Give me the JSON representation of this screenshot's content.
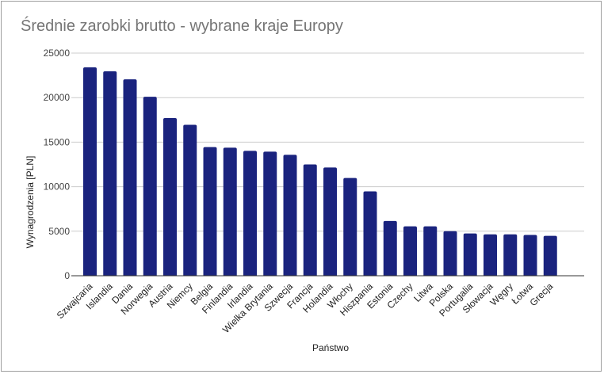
{
  "chart_data": {
    "type": "bar",
    "title": "Średnie zarobki brutto - wybrane kraje Europy",
    "xlabel": "Państwo",
    "ylabel": "Wynagrodzenia [PLN]",
    "ylim": [
      0,
      25000
    ],
    "yticks": [
      0,
      5000,
      10000,
      15000,
      20000,
      25000
    ],
    "grid": true,
    "legend": "none",
    "bar_color": "#1a237e",
    "categories": [
      "Szwajcaria",
      "Islandia",
      "Dania",
      "Norwegia",
      "Austria",
      "Niemcy",
      "Belgia",
      "Finlandia",
      "Irlandia",
      "Wielka Brytania",
      "Szwecja",
      "Francja",
      "Holandia",
      "Włochy",
      "Hiszpania",
      "Estonia",
      "Czechy",
      "Litwa",
      "Polska",
      "Portugalia",
      "Słowacja",
      "Węgry",
      "Łotwa",
      "Grecja"
    ],
    "values": [
      23400,
      22950,
      22050,
      20100,
      17700,
      16950,
      14450,
      14380,
      14020,
      13930,
      13580,
      12500,
      12150,
      10980,
      9480,
      6150,
      5550,
      5550,
      5000,
      4750,
      4650,
      4650,
      4580,
      4480
    ]
  }
}
